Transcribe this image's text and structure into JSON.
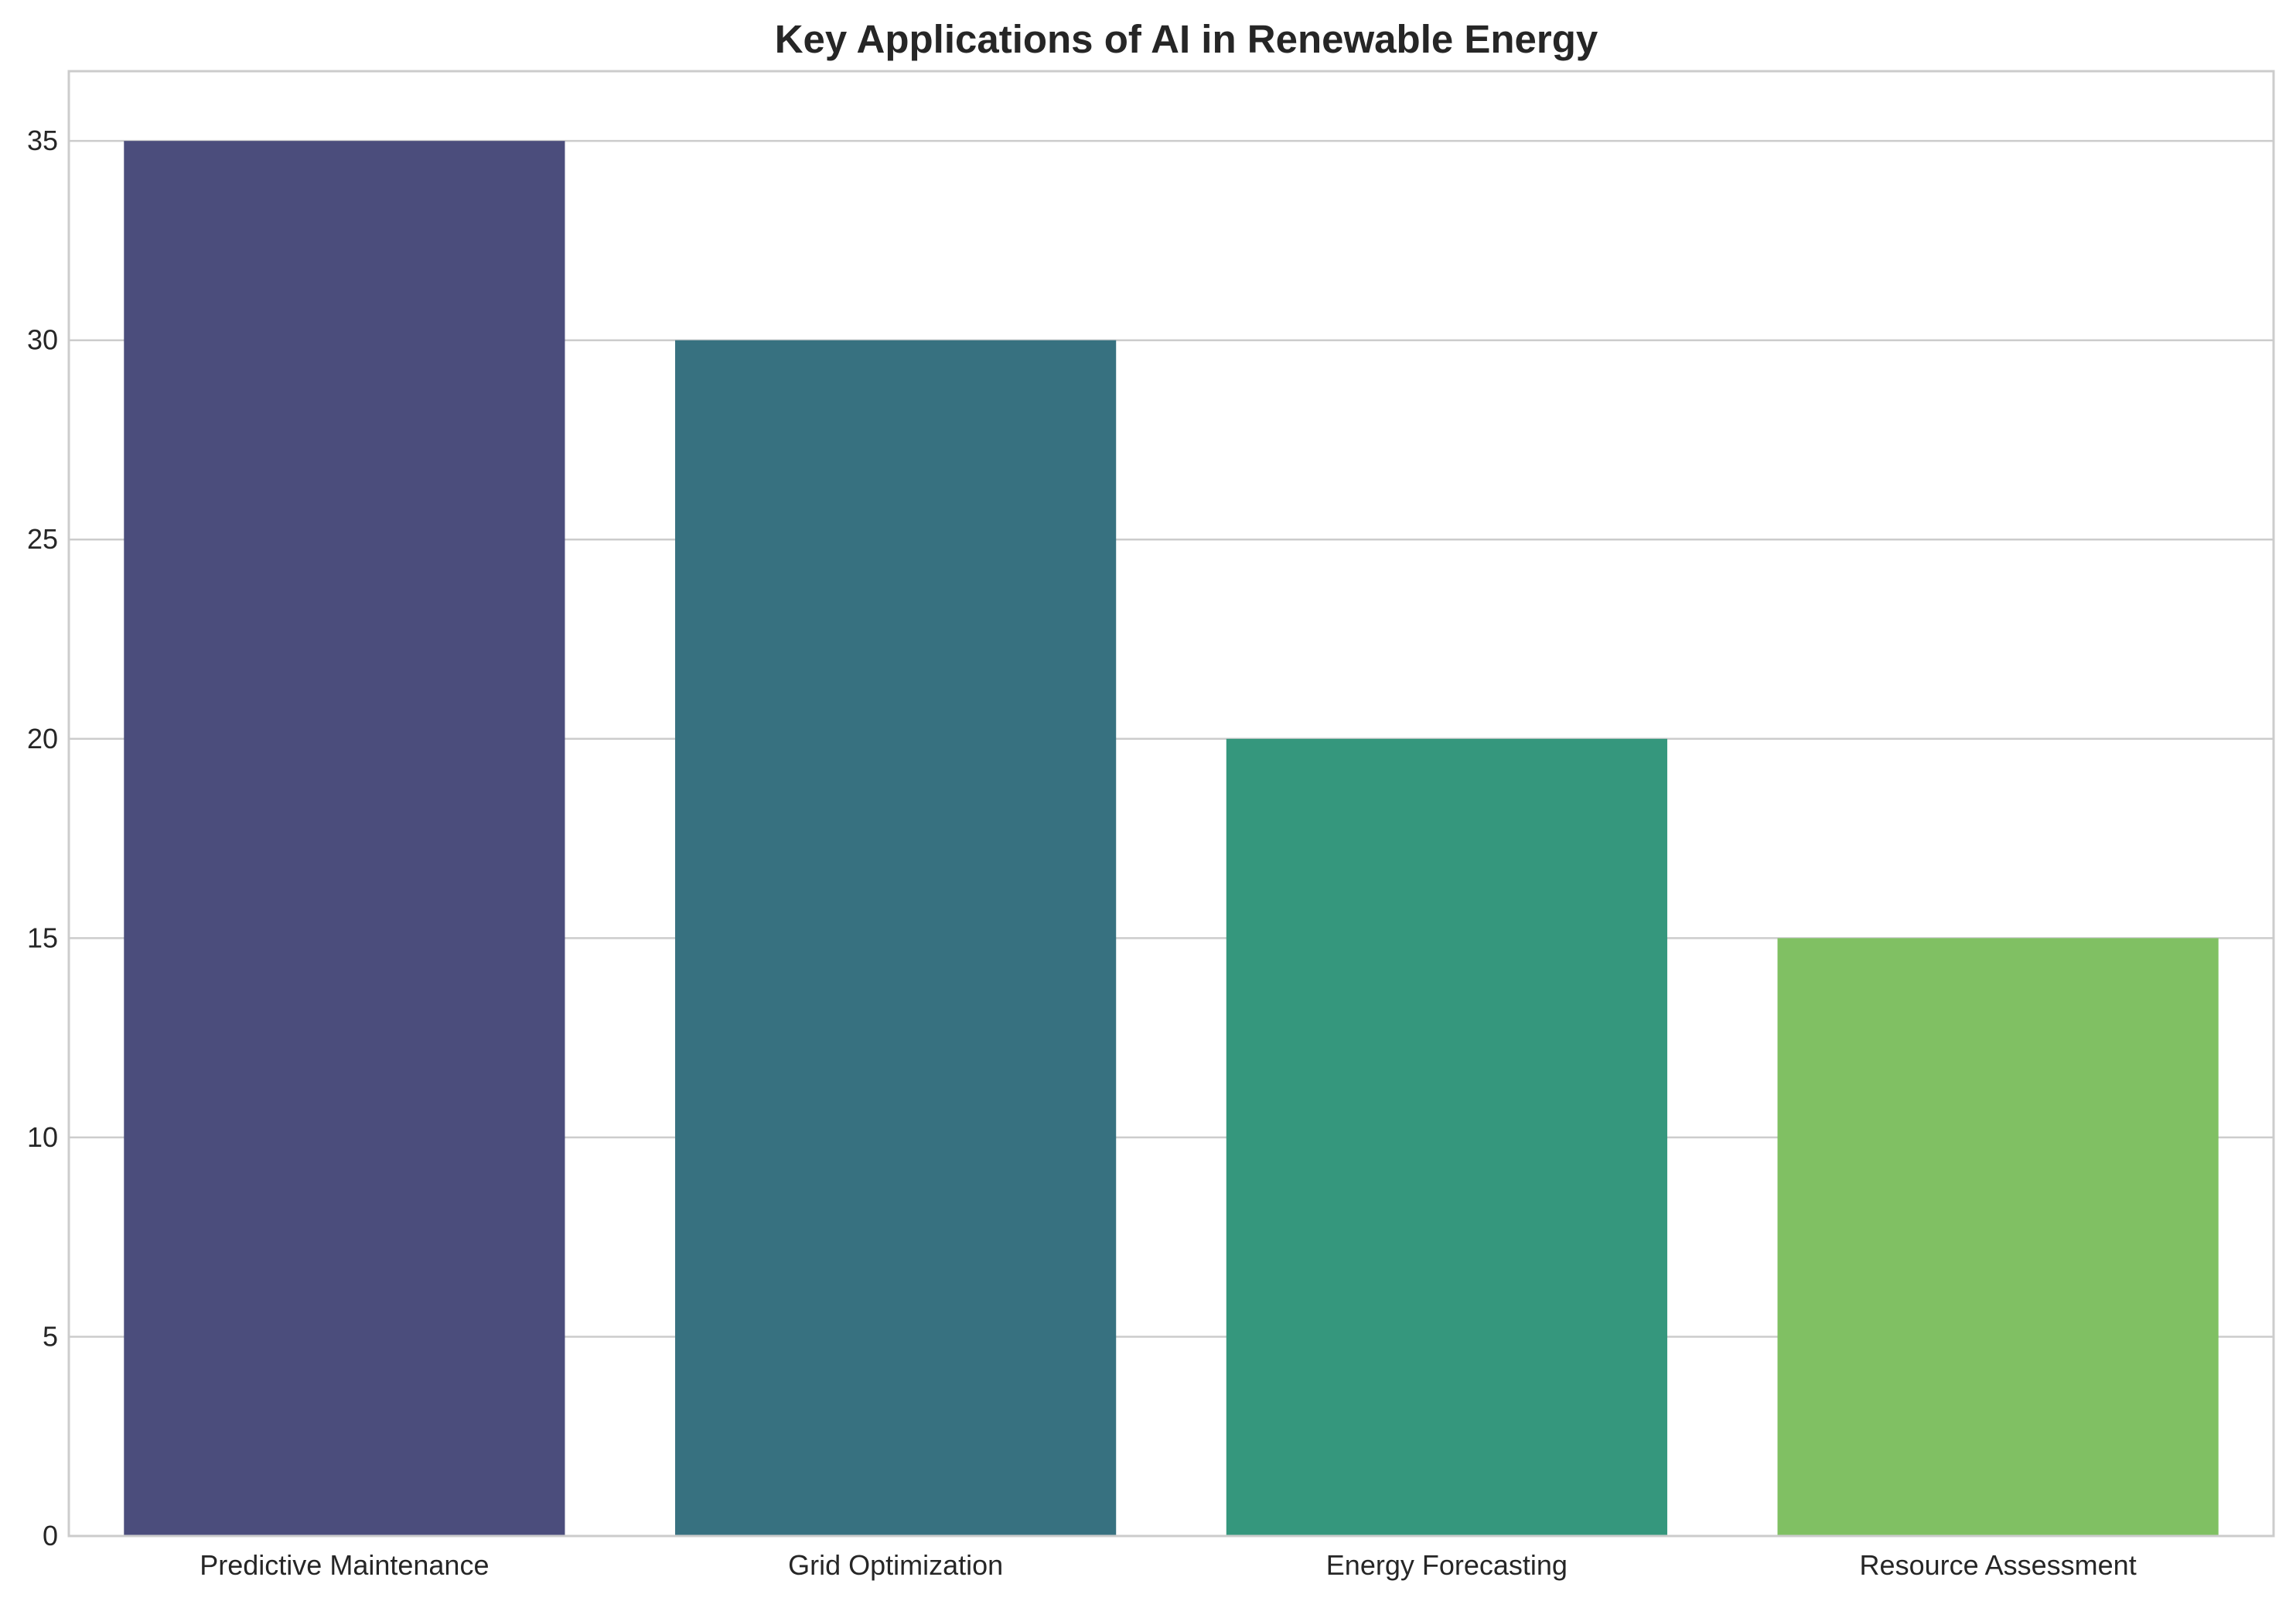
{
  "chart_data": {
    "type": "bar",
    "title": "Key Applications of AI in Renewable Energy",
    "xlabel": "",
    "ylabel": "",
    "categories": [
      "Predictive Maintenance",
      "Grid Optimization",
      "Energy Forecasting",
      "Resource Assessment"
    ],
    "values": [
      35,
      30,
      20,
      15
    ],
    "colors": [
      "#4b4d7c",
      "#377180",
      "#35977d",
      "#80c063"
    ],
    "ylim": [
      0,
      36.75
    ],
    "yticks": [
      0,
      5,
      10,
      15,
      20,
      25,
      30,
      35
    ],
    "grid": "horizontal",
    "legend": "none"
  }
}
